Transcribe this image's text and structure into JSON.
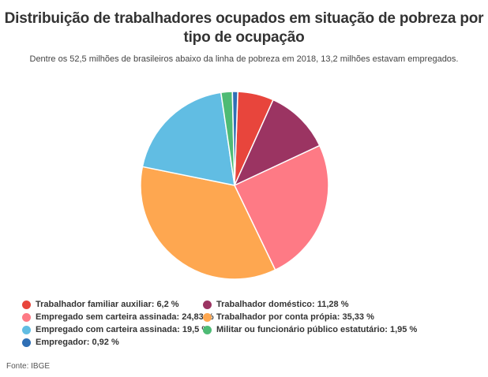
{
  "chart_data": {
    "type": "pie",
    "title": "Distribuição de trabalhadores ocupados em situação de pobreza por tipo de ocupação",
    "subtitle": "Dentre os 52,5 milhões de brasileiros abaixo da linha de pobreza em 2018, 13,2 milhões estavam empregados.",
    "slices": [
      {
        "label": "Trabalhador familiar auxiliar: 6,2 %",
        "value": 6.2,
        "color": "#e8453c"
      },
      {
        "label": "Trabalhador doméstico: 11,28 %",
        "value": 11.28,
        "color": "#9b3462"
      },
      {
        "label": "Empregado sem carteira assinada: 24,83 %",
        "value": 24.83,
        "color": "#fe7a85"
      },
      {
        "label": "Trabalhador por conta própia: 35,33 %",
        "value": 35.33,
        "color": "#fea750"
      },
      {
        "label": "Empregado com carteira assinada: 19,5 %",
        "value": 19.5,
        "color": "#61bde3"
      },
      {
        "label": "Militar ou funcionário público estatutário: 1,95 %",
        "value": 1.95,
        "color": "#4ebb75"
      },
      {
        "label": "Empregador: 0,92 %",
        "value": 0.92,
        "color": "#2f6fb5"
      }
    ],
    "legend_position": "bottom"
  },
  "source": "Fonte: IBGE"
}
